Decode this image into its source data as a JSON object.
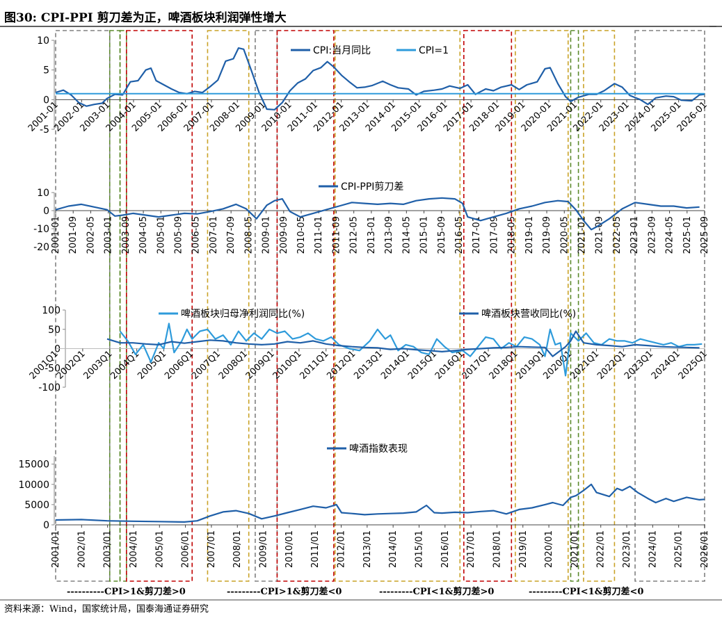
{
  "figure": {
    "title": "图30:  CPI-PPI 剪刀差为正，啤酒板块利润弹性增大",
    "source": "资料来源：Wind，国家统计局，国泰海通证券研究"
  },
  "regimes": {
    "legend": [
      {
        "key": "A",
        "label": "----------CPI>1&剪刀差>0",
        "color": "#C9A227"
      },
      {
        "key": "B",
        "label": "---------CPI>1&剪刀差<0",
        "color": "#C00000"
      },
      {
        "key": "C",
        "label": "---------CPI<1&剪刀差>0",
        "color": "#808080"
      },
      {
        "key": "D",
        "label": "---------CPI<1&剪刀差<0",
        "color": "#5B8A2B"
      }
    ],
    "periods": [
      {
        "key": "C",
        "start": 2001.0,
        "end": 2003.1
      },
      {
        "key": "D",
        "start": 2003.1,
        "end": 2003.5
      },
      {
        "key": "D",
        "start": 2003.5,
        "end": 2003.75
      },
      {
        "key": "B",
        "start": 2003.75,
        "end": 2006.3
      },
      {
        "key": "A",
        "start": 2006.9,
        "end": 2008.5
      },
      {
        "key": "C",
        "start": 2008.75,
        "end": 2009.6
      },
      {
        "key": "B",
        "start": 2009.6,
        "end": 2011.8
      },
      {
        "key": "A",
        "start": 2011.85,
        "end": 2016.7
      },
      {
        "key": "B",
        "start": 2016.85,
        "end": 2018.7
      },
      {
        "key": "A",
        "start": 2018.85,
        "end": 2020.9
      },
      {
        "key": "D",
        "start": 2021.0,
        "end": 2021.3
      },
      {
        "key": "A",
        "start": 2021.5,
        "end": 2022.7
      },
      {
        "key": "C",
        "start": 2023.5,
        "end": 2026.2
      }
    ]
  },
  "chart_data": [
    {
      "type": "line",
      "title": "",
      "xlim": [
        2001.0,
        2026.2
      ],
      "ylim": [
        -5,
        10
      ],
      "yticks": [
        "10",
        "5",
        "0",
        "-5"
      ],
      "ytick_values": [
        10,
        5,
        0,
        -5
      ],
      "xtick_labels": [
        "2001-01",
        "2002-01",
        "2003-01",
        "2004-01",
        "2005-01",
        "2006-01",
        "2007-01",
        "2008-01",
        "2009-01",
        "2010-01",
        "2011-01",
        "2012-01",
        "2013-01",
        "2014-01",
        "2015-01",
        "2016-01",
        "2017-01",
        "2018-01",
        "2019-01",
        "2020-01",
        "2021-01",
        "2022-01",
        "2023-01",
        "2024-01",
        "2025-01",
        "2026-01"
      ],
      "legend_position": "top",
      "series": [
        {
          "name": "CPI:当月同比",
          "color": "#1F5FA8",
          "x": [
            2001.0,
            2001.3,
            2001.6,
            2001.9,
            2002.2,
            2002.5,
            2002.8,
            2003.0,
            2003.3,
            2003.6,
            2003.9,
            2004.2,
            2004.5,
            2004.7,
            2004.9,
            2005.2,
            2005.5,
            2005.8,
            2006.1,
            2006.4,
            2006.7,
            2007.0,
            2007.3,
            2007.6,
            2007.9,
            2008.1,
            2008.3,
            2008.6,
            2008.9,
            2009.2,
            2009.5,
            2009.8,
            2010.1,
            2010.4,
            2010.7,
            2011.0,
            2011.3,
            2011.55,
            2011.8,
            2012.1,
            2012.4,
            2012.7,
            2013.0,
            2013.3,
            2013.7,
            2014.0,
            2014.3,
            2014.7,
            2015.0,
            2015.3,
            2015.7,
            2016.0,
            2016.3,
            2016.7,
            2017.0,
            2017.3,
            2017.7,
            2018.0,
            2018.3,
            2018.7,
            2019.0,
            2019.3,
            2019.7,
            2020.0,
            2020.2,
            2020.5,
            2020.8,
            2021.0,
            2021.3,
            2021.7,
            2022.0,
            2022.3,
            2022.7,
            2023.0,
            2023.3,
            2023.7,
            2024.0,
            2024.3,
            2024.7,
            2025.0,
            2025.3,
            2025.7,
            2026.0,
            2026.2
          ],
          "values": [
            1.2,
            1.6,
            0.8,
            -0.5,
            -1.1,
            -0.8,
            -0.6,
            0.2,
            0.9,
            0.8,
            3.0,
            3.2,
            5.0,
            5.3,
            3.2,
            2.5,
            1.8,
            1.2,
            1.0,
            1.4,
            1.2,
            2.2,
            3.3,
            6.5,
            6.9,
            8.7,
            8.5,
            4.9,
            1.2,
            -1.6,
            -1.7,
            -0.5,
            1.5,
            2.8,
            3.5,
            4.9,
            5.4,
            6.4,
            5.5,
            4.1,
            3.0,
            2.0,
            2.1,
            2.4,
            3.1,
            2.5,
            2.0,
            1.8,
            0.8,
            1.4,
            1.6,
            1.8,
            2.3,
            1.9,
            2.5,
            0.9,
            1.8,
            1.5,
            2.1,
            2.5,
            1.7,
            2.5,
            3.0,
            5.2,
            5.4,
            2.7,
            0.5,
            -0.3,
            0.4,
            0.9,
            0.9,
            1.5,
            2.7,
            2.1,
            0.7,
            0.0,
            -0.8,
            0.3,
            0.6,
            0.5,
            -0.1,
            -0.2,
            0.8,
            0.9
          ]
        },
        {
          "name": "CPI=1",
          "color": "#2E9BDB",
          "x": [
            2001.0,
            2026.2
          ],
          "values": [
            1,
            1
          ]
        }
      ]
    },
    {
      "type": "line",
      "title": "",
      "xlim": [
        2001.0,
        2026.2
      ],
      "ylim": [
        -20,
        10
      ],
      "yticks": [
        "10",
        "0",
        "-10",
        "-20"
      ],
      "ytick_values": [
        10,
        0,
        -10,
        -20
      ],
      "xtick_labels": [
        "2001-01",
        "2001-09",
        "2002-05",
        "2003-01",
        "2003-09",
        "2004-05",
        "2005-01",
        "2005-09",
        "2006-05",
        "2007-01",
        "2007-09",
        "2008-05",
        "2009-01",
        "2009-09",
        "2010-05",
        "2011-01",
        "2011-09",
        "2012-05",
        "2013-01",
        "2013-09",
        "2014-05",
        "2015-01",
        "2015-09",
        "2016-05",
        "2017-01",
        "2017-09",
        "2018-05",
        "2019-01",
        "2019-09",
        "2020-05",
        "2021-01",
        "2021-09",
        "2022-05",
        "2023-01",
        "2023-09",
        "2024-05",
        "2025-01",
        "2025-09"
      ],
      "series": [
        {
          "name": "CPI-PPI剪刀差",
          "color": "#1F5FA8",
          "x": [
            2001.0,
            2001.5,
            2002.0,
            2002.5,
            2003.0,
            2003.3,
            2003.6,
            2004.0,
            2004.5,
            2005.0,
            2005.5,
            2006.0,
            2006.5,
            2007.0,
            2007.5,
            2008.0,
            2008.4,
            2008.8,
            2009.2,
            2009.5,
            2009.8,
            2010.1,
            2010.5,
            2011.0,
            2011.5,
            2012.0,
            2012.5,
            2013.0,
            2013.5,
            2014.0,
            2014.5,
            2015.0,
            2015.5,
            2016.0,
            2016.5,
            2016.8,
            2017.0,
            2017.5,
            2018.0,
            2018.5,
            2019.0,
            2019.5,
            2020.0,
            2020.5,
            2020.9,
            2021.2,
            2021.5,
            2021.8,
            2022.0,
            2022.5,
            2023.0,
            2023.5,
            2024.0,
            2024.5,
            2025.0,
            2025.5,
            2026.0
          ],
          "values": [
            0.5,
            2.5,
            3.5,
            2.0,
            0.5,
            -3.0,
            -2.5,
            -1.5,
            -2.5,
            -3.5,
            -2.5,
            -1.5,
            -1.8,
            -0.5,
            1.0,
            3.5,
            1.0,
            -4.5,
            3.0,
            5.5,
            6.5,
            -0.5,
            -3.5,
            -1.5,
            0.5,
            2.5,
            4.5,
            4.0,
            3.5,
            4.0,
            3.5,
            5.5,
            6.5,
            7.0,
            6.5,
            4.0,
            -3.5,
            -5.5,
            -3.5,
            -1.5,
            1.0,
            2.5,
            4.5,
            5.5,
            5.0,
            0.5,
            -5.5,
            -10.5,
            -9.0,
            -4.5,
            1.0,
            4.5,
            3.5,
            2.5,
            2.5,
            1.5,
            2.0
          ]
        }
      ]
    },
    {
      "type": "line",
      "title": "",
      "xlim": [
        2001.0,
        2026.2
      ],
      "ylim": [
        -100,
        100
      ],
      "yticks": [
        "100",
        "50",
        "0",
        "-50",
        "-100"
      ],
      "ytick_values": [
        100,
        50,
        0,
        -50,
        -100
      ],
      "xtick_labels": [
        "2001Q1",
        "2002Q1",
        "2003Q1",
        "2004Q1",
        "2005Q1",
        "2006Q1",
        "2007Q1",
        "2008Q1",
        "2009Q1",
        "2010Q1",
        "2011Q1",
        "2012Q1",
        "2013Q1",
        "2014Q1",
        "2015Q1",
        "2016Q1",
        "2017Q1",
        "2018Q1",
        "2019Q1",
        "2020Q1",
        "2021Q1",
        "2022Q1",
        "2023Q1",
        "2024Q1",
        "2025Q1"
      ],
      "series": [
        {
          "name": "啤酒板块归母净利润同比(%)",
          "color": "#2E9BDB",
          "x": [
            2003.5,
            2003.8,
            2004.1,
            2004.4,
            2004.7,
            2005.0,
            2005.2,
            2005.4,
            2005.6,
            2005.9,
            2006.1,
            2006.3,
            2006.6,
            2006.9,
            2007.2,
            2007.5,
            2007.8,
            2008.1,
            2008.4,
            2008.7,
            2009.0,
            2009.3,
            2009.6,
            2009.9,
            2010.2,
            2010.5,
            2010.8,
            2011.1,
            2011.4,
            2011.7,
            2012.0,
            2012.4,
            2012.8,
            2013.2,
            2013.5,
            2013.8,
            2014.0,
            2014.3,
            2014.6,
            2014.9,
            2015.2,
            2015.5,
            2015.8,
            2016.1,
            2016.4,
            2016.8,
            2017.1,
            2017.4,
            2017.7,
            2018.0,
            2018.3,
            2018.6,
            2018.9,
            2019.2,
            2019.5,
            2019.8,
            2020.0,
            2020.2,
            2020.4,
            2020.6,
            2020.8,
            2021.0,
            2021.3,
            2021.6,
            2021.9,
            2022.2,
            2022.5,
            2022.8,
            2023.1,
            2023.4,
            2023.7,
            2024.0,
            2024.3,
            2024.6,
            2024.9,
            2025.2,
            2025.5,
            2025.8,
            2026.1
          ],
          "values": [
            45,
            20,
            -15,
            10,
            -35,
            15,
            0,
            65,
            -10,
            20,
            50,
            25,
            45,
            50,
            25,
            35,
            10,
            45,
            20,
            40,
            25,
            50,
            40,
            45,
            25,
            30,
            40,
            25,
            20,
            30,
            10,
            0,
            -5,
            20,
            50,
            25,
            35,
            -5,
            10,
            5,
            -10,
            -15,
            25,
            5,
            -10,
            -5,
            -20,
            5,
            30,
            25,
            0,
            15,
            5,
            30,
            25,
            10,
            -20,
            50,
            10,
            15,
            -70,
            40,
            20,
            40,
            15,
            10,
            25,
            20,
            20,
            15,
            25,
            20,
            15,
            10,
            15,
            5,
            10,
            10,
            12
          ]
        },
        {
          "name": "啤酒板块营收同比(%)",
          "color": "#1F5FA8",
          "x": [
            2003.0,
            2003.5,
            2004.0,
            2004.5,
            2005.0,
            2005.5,
            2006.0,
            2006.5,
            2007.0,
            2007.5,
            2008.0,
            2008.5,
            2009.0,
            2009.5,
            2010.0,
            2010.5,
            2011.0,
            2011.5,
            2012.0,
            2012.5,
            2013.0,
            2013.5,
            2014.0,
            2014.5,
            2015.0,
            2015.5,
            2016.0,
            2016.5,
            2017.0,
            2017.5,
            2018.0,
            2018.5,
            2019.0,
            2019.5,
            2020.0,
            2020.3,
            2020.6,
            2020.8,
            2021.0,
            2021.2,
            2021.5,
            2022.0,
            2022.5,
            2023.0,
            2023.5,
            2024.0,
            2024.5,
            2025.0,
            2025.5,
            2026.0
          ],
          "values": [
            25,
            15,
            15,
            12,
            10,
            18,
            14,
            18,
            22,
            20,
            15,
            12,
            10,
            12,
            18,
            15,
            20,
            12,
            8,
            5,
            3,
            2,
            -2,
            0,
            -3,
            -5,
            -8,
            -5,
            -2,
            0,
            2,
            3,
            5,
            4,
            3,
            -20,
            -5,
            5,
            20,
            45,
            15,
            10,
            8,
            5,
            10,
            8,
            5,
            4,
            3,
            2
          ]
        }
      ]
    },
    {
      "type": "line",
      "title": "",
      "xlim": [
        2001.0,
        2026.2
      ],
      "ylim": [
        0,
        17000
      ],
      "yticks": [
        "15000",
        "10000",
        "5000",
        "0"
      ],
      "ytick_values": [
        15000,
        10000,
        5000,
        0
      ],
      "xtick_labels": [
        "2001/01",
        "2002/01",
        "2003/01",
        "2004/01",
        "2005/01",
        "2006/01",
        "2007/01",
        "2008/01",
        "2009/01",
        "2010/01",
        "2011/01",
        "2012/01",
        "2013/01",
        "2014/01",
        "2015/01",
        "2016/01",
        "2017/01",
        "2018/01",
        "2019/01",
        "2020/01",
        "2021/01",
        "2022/01",
        "2023/01",
        "2024/01",
        "2025/01",
        "2026/01"
      ],
      "series": [
        {
          "name": "啤酒指数表现",
          "color": "#1F5FA8",
          "x": [
            2001.0,
            2002.0,
            2003.0,
            2004.0,
            2005.0,
            2006.0,
            2006.5,
            2007.0,
            2007.5,
            2008.0,
            2008.5,
            2009.0,
            2009.5,
            2010.0,
            2010.5,
            2011.0,
            2011.5,
            2011.9,
            2012.1,
            2012.5,
            2013.0,
            2013.5,
            2014.0,
            2014.5,
            2015.0,
            2015.4,
            2015.7,
            2016.0,
            2016.5,
            2017.0,
            2017.5,
            2018.0,
            2018.5,
            2019.0,
            2019.5,
            2020.0,
            2020.3,
            2020.7,
            2021.0,
            2021.2,
            2021.5,
            2021.8,
            2022.0,
            2022.5,
            2022.8,
            2023.0,
            2023.3,
            2023.6,
            2024.0,
            2024.3,
            2024.7,
            2025.0,
            2025.5,
            2026.0,
            2026.2
          ],
          "values": [
            1200,
            1300,
            1000,
            900,
            800,
            700,
            1000,
            2200,
            3200,
            3500,
            2800,
            1500,
            2200,
            3000,
            3800,
            4600,
            4200,
            5000,
            3000,
            2800,
            2500,
            2700,
            2800,
            2900,
            3200,
            4800,
            3000,
            2900,
            3100,
            3000,
            3300,
            3500,
            2700,
            3800,
            4200,
            5000,
            5500,
            4800,
            6800,
            7200,
            8500,
            10000,
            8000,
            7000,
            9000,
            8500,
            9500,
            8000,
            6500,
            5500,
            6500,
            5800,
            6800,
            6200,
            6300
          ]
        }
      ]
    }
  ]
}
